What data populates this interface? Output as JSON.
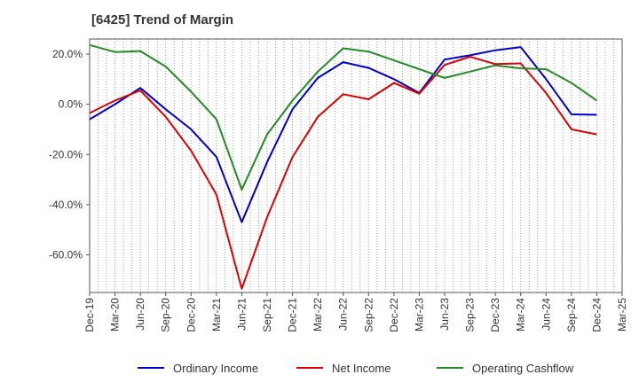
{
  "chart_data": {
    "type": "line",
    "title": "[6425]  Trend of Margin",
    "xlabel": "",
    "ylabel": "",
    "ylim": [
      -75,
      26
    ],
    "y_ticks": [
      20,
      0,
      -20,
      -40,
      -60
    ],
    "y_tick_labels": [
      "20.0%",
      "0.0%",
      "-20.0%",
      "-40.0%",
      "-60.0%"
    ],
    "x_tick_labels": [
      "Dec-19",
      "Mar-20",
      "Jun-20",
      "Sep-20",
      "Dec-20",
      "Mar-21",
      "Jun-21",
      "Sep-21",
      "Dec-21",
      "Mar-22",
      "Jun-22",
      "Sep-22",
      "Dec-22",
      "Mar-23",
      "Jun-23",
      "Sep-23",
      "Dec-23",
      "Mar-24",
      "Jun-24",
      "Sep-24",
      "Dec-24",
      "Mar-25"
    ],
    "grid": "vertical dotted lines",
    "legend_position": "bottom",
    "series": [
      {
        "name": "Ordinary Income",
        "color": "#0000cc",
        "x": [
          "Dec-19",
          "Mar-20",
          "Jun-20",
          "Sep-20",
          "Dec-20",
          "Mar-21",
          "Jun-21",
          "Sep-21",
          "Dec-21",
          "Mar-22",
          "Jun-22",
          "Sep-22",
          "Dec-22",
          "Mar-23",
          "Jun-23",
          "Sep-23",
          "Dec-23",
          "Mar-24",
          "Jun-24",
          "Sep-24",
          "Dec-24"
        ],
        "values": [
          -6,
          0,
          6.5,
          -2,
          -10,
          -21,
          -47,
          -23,
          -2,
          10.5,
          16.8,
          14.5,
          10,
          4.5,
          17.8,
          19.5,
          21.5,
          22.8,
          10,
          -4,
          -4.2
        ]
      },
      {
        "name": "Net Income",
        "color": "#dd0000",
        "x": [
          "Dec-19",
          "Mar-20",
          "Jun-20",
          "Sep-20",
          "Dec-20",
          "Mar-21",
          "Jun-21",
          "Sep-21",
          "Dec-21",
          "Mar-22",
          "Jun-22",
          "Sep-22",
          "Dec-22",
          "Mar-23",
          "Jun-23",
          "Sep-23",
          "Dec-23",
          "Mar-24",
          "Jun-24",
          "Sep-24",
          "Dec-24"
        ],
        "values": [
          -3.5,
          1.5,
          5.5,
          -5,
          -18.5,
          -36,
          -73.5,
          -45,
          -21,
          -5,
          4,
          2,
          8.5,
          4.2,
          15.7,
          18.9,
          16,
          16.3,
          4.5,
          -10,
          -12
        ]
      },
      {
        "name": "Operating Cashflow",
        "color": "#228b22",
        "x": [
          "Dec-19",
          "Mar-20",
          "Jun-20",
          "Sep-20",
          "Dec-20",
          "Mar-21",
          "Jun-21",
          "Sep-21",
          "Dec-21",
          "Mar-22",
          "Jun-22",
          "Sep-22",
          "Dec-22",
          "Mar-23",
          "Jun-23",
          "Sep-23",
          "Dec-23",
          "Mar-24",
          "Jun-24",
          "Sep-24",
          "Dec-24"
        ],
        "values": [
          23.6,
          20.8,
          21.2,
          15,
          5,
          -6,
          -34,
          -12,
          1.5,
          13,
          22.3,
          21,
          17.5,
          14,
          10.5,
          13,
          15.5,
          14.3,
          14,
          8.5,
          1.5
        ]
      }
    ]
  }
}
